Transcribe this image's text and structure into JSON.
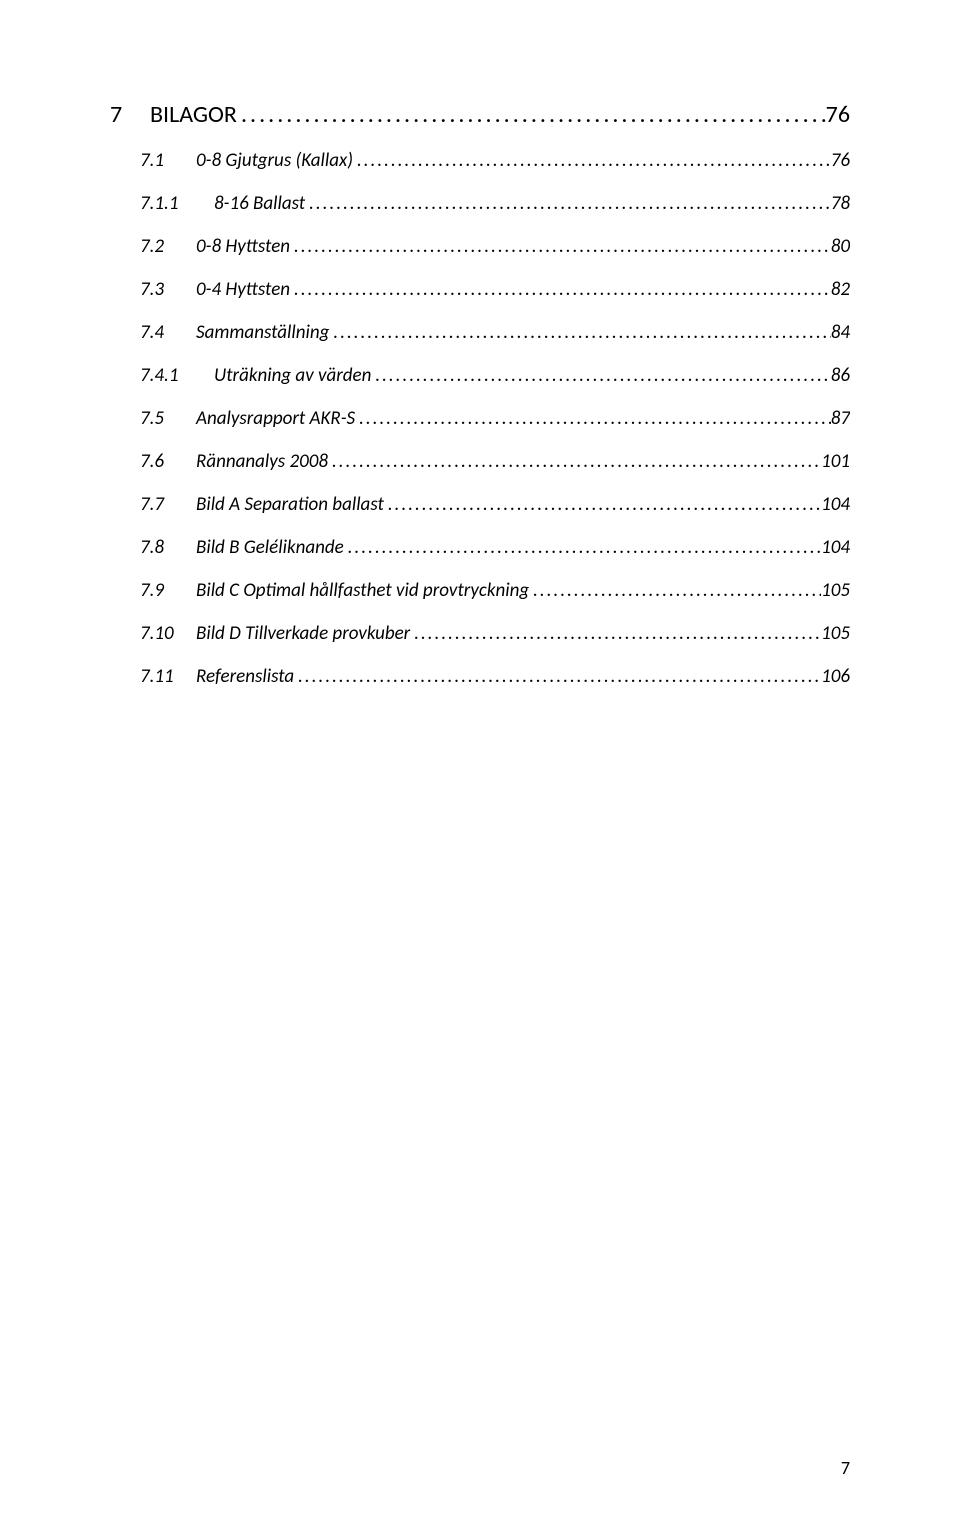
{
  "toc": [
    {
      "level": 1,
      "num": "7",
      "title": "BILAGOR",
      "page": "76"
    },
    {
      "level": 2,
      "num": "7.1",
      "title": "0-8 Gjutgrus (Kallax)",
      "page": "76"
    },
    {
      "level": 3,
      "num": "7.1.1",
      "title": "8-16 Ballast",
      "page": "78"
    },
    {
      "level": 2,
      "num": "7.2",
      "title": "0-8 Hyttsten",
      "page": "80"
    },
    {
      "level": 2,
      "num": "7.3",
      "title": "0-4 Hyttsten",
      "page": "82"
    },
    {
      "level": 2,
      "num": "7.4",
      "title": "Sammanställning",
      "page": "84"
    },
    {
      "level": 3,
      "num": "7.4.1",
      "title": "Uträkning av värden",
      "page": "86"
    },
    {
      "level": 2,
      "num": "7.5",
      "title": "Analysrapport AKR-S",
      "page": "87"
    },
    {
      "level": 2,
      "num": "7.6",
      "title": "Rännanalys 2008",
      "page": "101"
    },
    {
      "level": 2,
      "num": "7.7",
      "title": "Bild A Separation ballast",
      "page": "104"
    },
    {
      "level": 2,
      "num": "7.8",
      "title": "Bild B Geléliknande",
      "page": "104"
    },
    {
      "level": 2,
      "num": "7.9",
      "title": "Bild C Optimal hållfasthet vid provtryckning",
      "page": "105"
    },
    {
      "level": 2,
      "num": "7.10",
      "title": "Bild D Tillverkade provkuber",
      "page": "105"
    },
    {
      "level": 2,
      "num": "7.11",
      "title": "Referenslista",
      "page": "106"
    }
  ],
  "footer_page_number": "7",
  "colors": {
    "text": "#000000",
    "background": "#ffffff"
  },
  "typography": {
    "body_font": "Calibri",
    "heading_fontsize_pt": 18,
    "entry_fontsize_pt": 14
  }
}
